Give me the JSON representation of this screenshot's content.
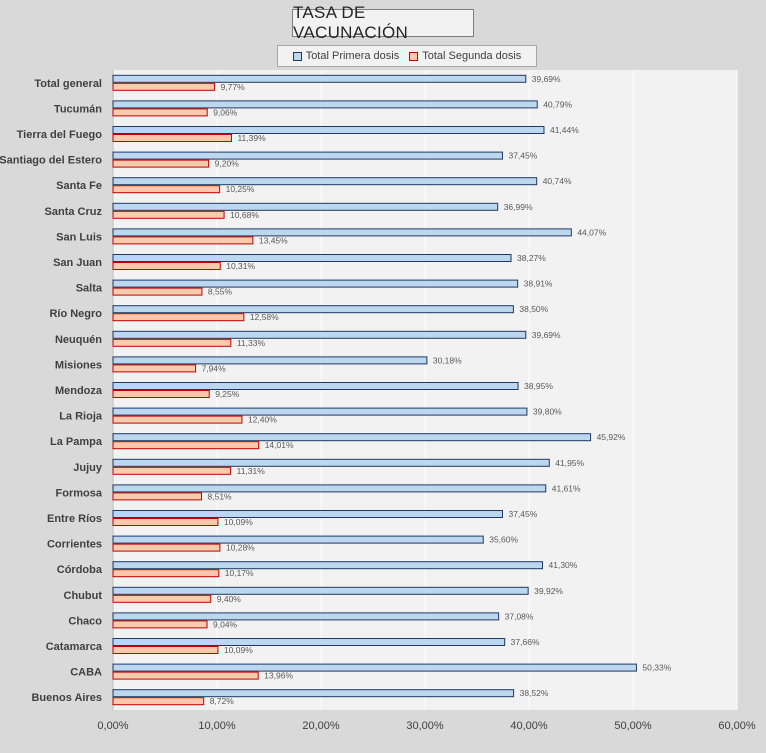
{
  "chart_data": {
    "type": "bar",
    "orientation": "horizontal",
    "title": "TASA DE VACUNACIÓN",
    "categories": [
      "Total general",
      "Tucumán",
      "Tierra del Fuego",
      "Santiago del Estero",
      "Santa Fe",
      "Santa Cruz",
      "San Luis",
      "San Juan",
      "Salta",
      "Río Negro",
      "Neuquén",
      "Misiones",
      "Mendoza",
      "La Rioja",
      "La Pampa",
      "Jujuy",
      "Formosa",
      "Entre Ríos",
      "Corrientes",
      "Córdoba",
      "Chubut",
      "Chaco",
      "Catamarca",
      "CABA",
      "Buenos Aires"
    ],
    "series": [
      {
        "name": "Total Primera dosis",
        "color": "#bdd7ee",
        "border": "#1f3864",
        "values": [
          39.69,
          40.79,
          41.44,
          37.45,
          40.74,
          36.99,
          44.07,
          38.27,
          38.91,
          38.5,
          39.69,
          30.18,
          38.95,
          39.8,
          45.92,
          41.95,
          41.61,
          37.45,
          35.6,
          41.3,
          39.92,
          37.08,
          37.66,
          50.33,
          38.52
        ],
        "labels": [
          "39,69%",
          "40,79%",
          "41,44%",
          "37,45%",
          "40,74%",
          "36,99%",
          "44,07%",
          "38,27%",
          "38,91%",
          "38,50%",
          "39,69%",
          "30,18%",
          "38,95%",
          "39,80%",
          "45,92%",
          "41,95%",
          "41,61%",
          "37,45%",
          "35,60%",
          "41,30%",
          "39,92%",
          "37,08%",
          "37,66%",
          "50,33%",
          "38,52%"
        ]
      },
      {
        "name": "Total Segunda dosis",
        "color": "#f8cbad",
        "border": "#c00000",
        "values": [
          9.77,
          9.06,
          11.39,
          9.2,
          10.25,
          10.68,
          13.45,
          10.31,
          8.55,
          12.58,
          11.33,
          7.94,
          9.25,
          12.4,
          14.01,
          11.31,
          8.51,
          10.09,
          10.28,
          10.17,
          9.4,
          9.04,
          10.09,
          13.96,
          8.72
        ],
        "labels": [
          "9,77%",
          "9,06%",
          "11,39%",
          "9,20%",
          "10,25%",
          "10,68%",
          "13,45%",
          "10,31%",
          "8,55%",
          "12,58%",
          "11,33%",
          "7,94%",
          "9,25%",
          "12,40%",
          "14,01%",
          "11,31%",
          "8,51%",
          "10,09%",
          "10,28%",
          "10,17%",
          "9,40%",
          "9,04%",
          "10,09%",
          "13,96%",
          "8,72%"
        ]
      }
    ],
    "xlim": [
      0,
      60
    ],
    "xticks": [
      0,
      10,
      20,
      30,
      40,
      50,
      60
    ],
    "xtick_labels": [
      "0,00%",
      "10,00%",
      "20,00%",
      "30,00%",
      "40,00%",
      "50,00%",
      "60,00%"
    ],
    "grid": true,
    "legend_position": "top-center",
    "plot_background": "#f2f2f2",
    "grid_color": "#ffffff"
  }
}
